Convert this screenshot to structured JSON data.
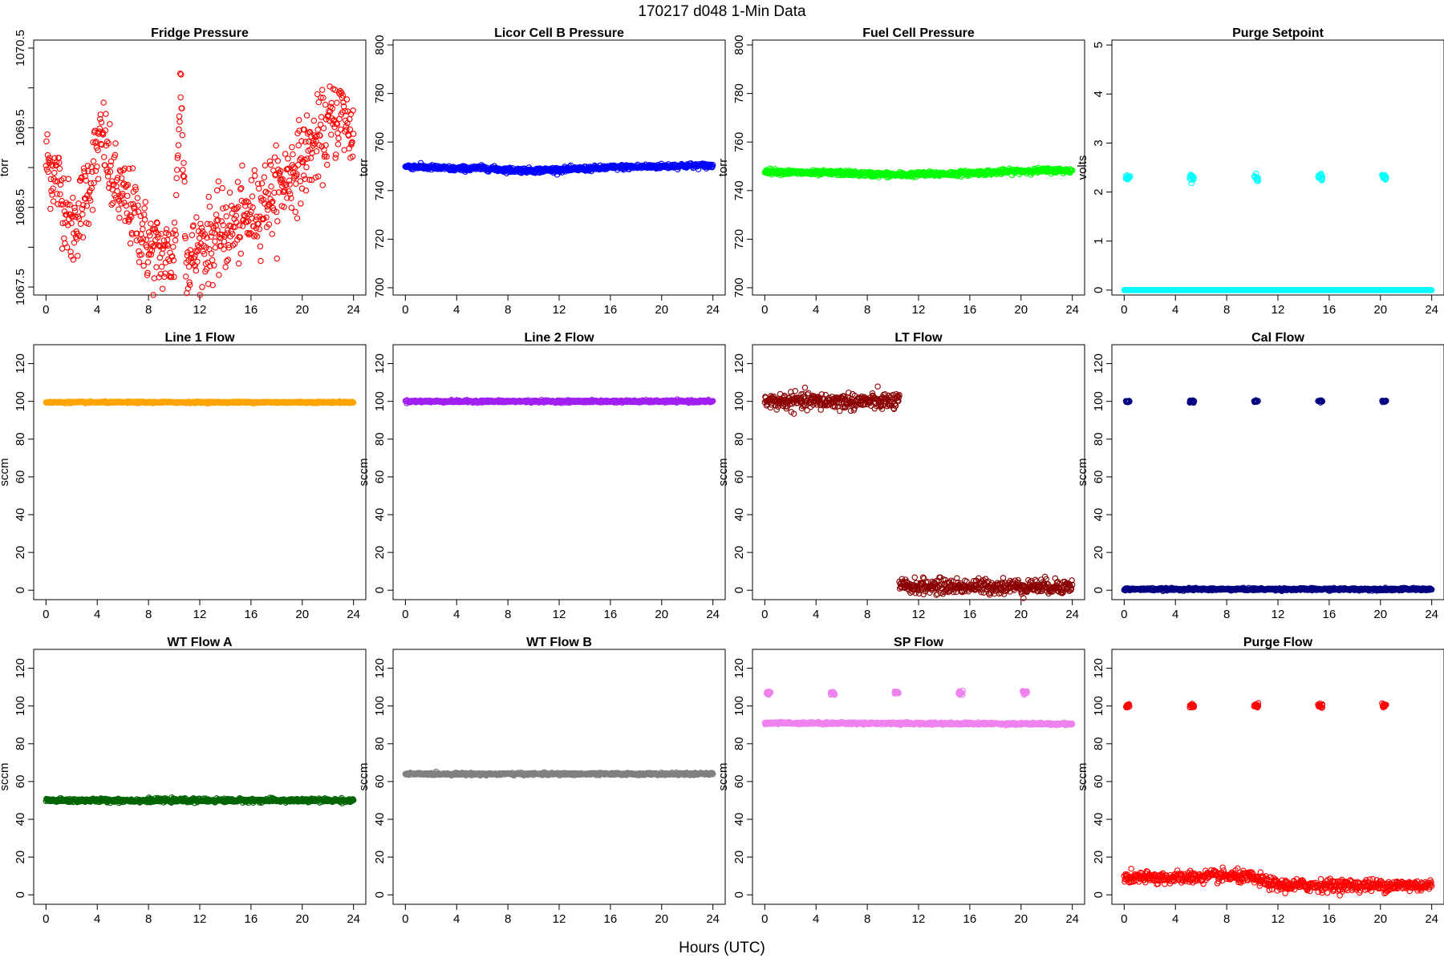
{
  "figure": {
    "title": "170217   d048   1-Min Data",
    "xlabel": "Hours (UTC)"
  },
  "chart_data": [
    {
      "type": "scatter",
      "title": "Fridge Pressure",
      "ylabel": "torr",
      "color": "#ff0000",
      "xlim": [
        0,
        24
      ],
      "ylim": [
        1067.4,
        1070.6
      ],
      "xticks": [
        0,
        4,
        8,
        12,
        16,
        20,
        24
      ],
      "yticks": [
        1067.5,
        1068,
        1068.5,
        1069,
        1069.5,
        1070,
        1070.5
      ],
      "ytick_labels": [
        "1067.5",
        "",
        "1068.5",
        "",
        "1069.5",
        "",
        "1070.5"
      ],
      "series": [
        {
          "kind": "points",
          "x": [
            0,
            1,
            2,
            3,
            4,
            4.5,
            5,
            6,
            7,
            8,
            9,
            10,
            10.5,
            11,
            12,
            13,
            14,
            15,
            16,
            17,
            18,
            19,
            20,
            21,
            22,
            23,
            24
          ],
          "y": [
            1069.1,
            1068.8,
            1068.2,
            1068.6,
            1069.2,
            1069.4,
            1068.9,
            1068.6,
            1068.4,
            1068.0,
            1067.9,
            1067.9,
            1070.1,
            1067.8,
            1068.0,
            1068.1,
            1068.2,
            1068.3,
            1068.4,
            1068.6,
            1068.7,
            1068.9,
            1069.1,
            1069.3,
            1069.5,
            1069.7,
            1069.4
          ],
          "spread": 0.25
        }
      ]
    },
    {
      "type": "scatter",
      "title": "Licor Cell B Pressure",
      "ylabel": "torr",
      "color": "#0000ff",
      "xlim": [
        0,
        24
      ],
      "ylim": [
        697,
        802
      ],
      "xticks": [
        0,
        4,
        8,
        12,
        16,
        20,
        24
      ],
      "yticks": [
        700,
        720,
        740,
        760,
        780,
        800
      ],
      "series": [
        {
          "kind": "points",
          "x": [
            0,
            2,
            4,
            6,
            8,
            10,
            12,
            14,
            16,
            18,
            20,
            22,
            24
          ],
          "y": [
            750,
            749.5,
            749,
            749.3,
            748.5,
            748.3,
            748.6,
            749,
            749.5,
            749.8,
            750,
            750.3,
            750.2
          ],
          "spread": 0.5
        }
      ]
    },
    {
      "type": "scatter",
      "title": "Fuel Cell Pressure",
      "ylabel": "torr",
      "color": "#00ff00",
      "xlim": [
        0,
        24
      ],
      "ylim": [
        697,
        802
      ],
      "xticks": [
        0,
        4,
        8,
        12,
        16,
        20,
        24
      ],
      "yticks": [
        700,
        720,
        740,
        760,
        780,
        800
      ],
      "series": [
        {
          "kind": "points",
          "x": [
            0,
            2,
            4,
            6,
            8,
            10,
            12,
            14,
            16,
            18,
            20,
            22,
            24
          ],
          "y": [
            748,
            747.5,
            747.2,
            747.3,
            746.8,
            746.5,
            746.7,
            746.9,
            747.2,
            747.6,
            748,
            748.3,
            748.2
          ],
          "spread": 0.5
        }
      ]
    },
    {
      "type": "scatter",
      "title": "Purge Setpoint",
      "ylabel": "volts",
      "color": "#00ffff",
      "xlim": [
        0,
        24
      ],
      "ylim": [
        -0.1,
        5.1
      ],
      "xticks": [
        0,
        4,
        8,
        12,
        16,
        20,
        24
      ],
      "yticks": [
        0,
        1,
        2,
        3,
        4,
        5
      ],
      "series": [
        {
          "kind": "baseline",
          "x": [
            0,
            24
          ],
          "y": [
            0,
            0
          ],
          "spread": 0
        },
        {
          "kind": "bursts",
          "x": [
            0.3,
            5.3,
            10.3,
            15.3,
            20.3
          ],
          "y": [
            2.3,
            2.3,
            2.3,
            2.3,
            2.3
          ],
          "spread": 0.04
        }
      ]
    },
    {
      "type": "scatter",
      "title": "Line 1 Flow",
      "ylabel": "sccm",
      "color": "#ffa500",
      "xlim": [
        0,
        24
      ],
      "ylim": [
        -5,
        130
      ],
      "xticks": [
        0,
        4,
        8,
        12,
        16,
        20,
        24
      ],
      "yticks": [
        0,
        20,
        40,
        60,
        80,
        100,
        120
      ],
      "series": [
        {
          "kind": "points",
          "x": [
            0,
            24
          ],
          "y": [
            99.5,
            99.5
          ],
          "spread": 0.2
        }
      ]
    },
    {
      "type": "scatter",
      "title": "Line 2 Flow",
      "ylabel": "sccm",
      "color": "#a020f0",
      "xlim": [
        0,
        24
      ],
      "ylim": [
        -5,
        130
      ],
      "xticks": [
        0,
        4,
        8,
        12,
        16,
        20,
        24
      ],
      "yticks": [
        0,
        20,
        40,
        60,
        80,
        100,
        120
      ],
      "series": [
        {
          "kind": "points",
          "x": [
            0,
            24
          ],
          "y": [
            100,
            100
          ],
          "spread": 0.3
        }
      ]
    },
    {
      "type": "scatter",
      "title": "LT Flow",
      "ylabel": "sccm",
      "color": "#8b0000",
      "xlim": [
        0,
        24
      ],
      "ylim": [
        -5,
        130
      ],
      "xticks": [
        0,
        4,
        8,
        12,
        16,
        20,
        24
      ],
      "yticks": [
        0,
        20,
        40,
        60,
        80,
        100,
        120
      ],
      "series": [
        {
          "kind": "points",
          "x": [
            0,
            10.5
          ],
          "y": [
            100,
            100
          ],
          "spread": 2.2
        },
        {
          "kind": "points",
          "x": [
            10.5,
            24
          ],
          "y": [
            2,
            2
          ],
          "spread": 2
        }
      ]
    },
    {
      "type": "scatter",
      "title": "Cal Flow",
      "ylabel": "sccm",
      "color": "#000080",
      "xlim": [
        0,
        24
      ],
      "ylim": [
        -5,
        130
      ],
      "xticks": [
        0,
        4,
        8,
        12,
        16,
        20,
        24
      ],
      "yticks": [
        0,
        20,
        40,
        60,
        80,
        100,
        120
      ],
      "series": [
        {
          "kind": "baseline",
          "x": [
            0,
            24
          ],
          "y": [
            0.5,
            0.5
          ],
          "spread": 0.3
        },
        {
          "kind": "bursts",
          "x": [
            0.3,
            5.3,
            10.3,
            15.3,
            20.3
          ],
          "y": [
            100,
            100,
            100,
            100,
            100
          ],
          "spread": 0.3
        }
      ]
    },
    {
      "type": "scatter",
      "title": "WT Flow A",
      "ylabel": "sccm",
      "color": "#006400",
      "xlim": [
        0,
        24
      ],
      "ylim": [
        -5,
        130
      ],
      "xticks": [
        0,
        4,
        8,
        12,
        16,
        20,
        24
      ],
      "yticks": [
        0,
        20,
        40,
        60,
        80,
        100,
        120
      ],
      "series": [
        {
          "kind": "points",
          "x": [
            0,
            24
          ],
          "y": [
            50,
            50
          ],
          "spread": 0.5
        }
      ]
    },
    {
      "type": "scatter",
      "title": "WT Flow B",
      "ylabel": "sccm",
      "color": "#808080",
      "xlim": [
        0,
        24
      ],
      "ylim": [
        -5,
        130
      ],
      "xticks": [
        0,
        4,
        8,
        12,
        16,
        20,
        24
      ],
      "yticks": [
        0,
        20,
        40,
        60,
        80,
        100,
        120
      ],
      "series": [
        {
          "kind": "points",
          "x": [
            0,
            24
          ],
          "y": [
            64,
            64
          ],
          "spread": 0.3
        }
      ]
    },
    {
      "type": "scatter",
      "title": "SP Flow",
      "ylabel": "sccm",
      "color": "#ee82ee",
      "xlim": [
        0,
        24
      ],
      "ylim": [
        -5,
        130
      ],
      "xticks": [
        0,
        4,
        8,
        12,
        16,
        20,
        24
      ],
      "yticks": [
        0,
        20,
        40,
        60,
        80,
        100,
        120
      ],
      "series": [
        {
          "kind": "points",
          "x": [
            0,
            24
          ],
          "y": [
            91,
            90.5
          ],
          "spread": 0.3
        },
        {
          "kind": "bursts",
          "x": [
            0.3,
            5.3,
            10.3,
            15.3,
            20.3
          ],
          "y": [
            107,
            107,
            107,
            107,
            107
          ],
          "spread": 0.5
        }
      ]
    },
    {
      "type": "scatter",
      "title": "Purge Flow",
      "ylabel": "sccm",
      "color": "#ff0000",
      "xlim": [
        0,
        24
      ],
      "ylim": [
        -5,
        130
      ],
      "xticks": [
        0,
        4,
        8,
        12,
        16,
        20,
        24
      ],
      "yticks": [
        0,
        20,
        40,
        60,
        80,
        100,
        120
      ],
      "series": [
        {
          "kind": "points",
          "x": [
            0,
            4,
            8,
            10,
            11,
            12,
            16,
            20,
            24
          ],
          "y": [
            9,
            9,
            10,
            9,
            7,
            5,
            5,
            5,
            5
          ],
          "spread": 1.6
        },
        {
          "kind": "bursts",
          "x": [
            0.3,
            5.3,
            10.3,
            15.3,
            20.3
          ],
          "y": [
            100,
            100,
            100,
            100,
            100
          ],
          "spread": 0.6
        }
      ]
    }
  ]
}
